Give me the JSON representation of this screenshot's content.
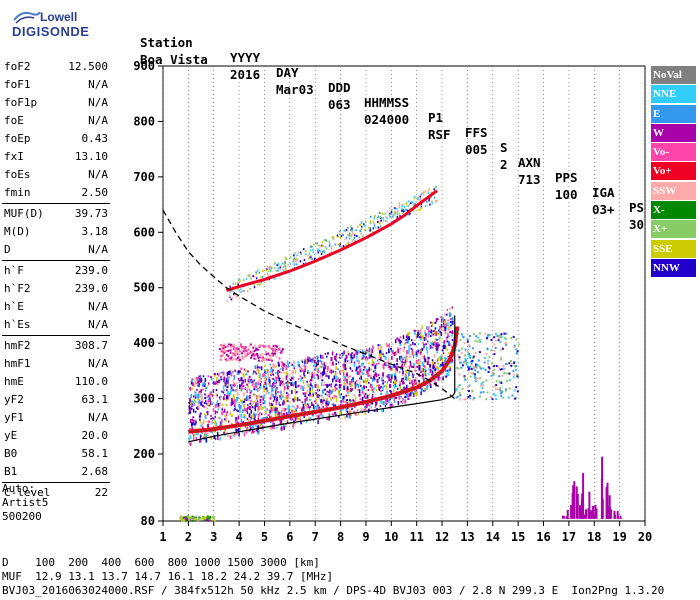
{
  "logo": {
    "line1": "Lowell",
    "line2": "DIGISONDE"
  },
  "header": {
    "labels": [
      "Station",
      "YYYY",
      "DAY",
      "DDD",
      "HHMMSS",
      "P1",
      "FFS",
      "S",
      "AXN",
      "PPS",
      "IGA",
      "PS"
    ],
    "values": [
      "Boa Vista",
      "2016",
      "Mar03",
      "063",
      "024000",
      "RSF",
      "005",
      "2",
      "713",
      "100",
      "03+",
      "30"
    ]
  },
  "params": {
    "group1": [
      {
        "label": "foF2",
        "value": "12.500"
      },
      {
        "label": "foF1",
        "value": "N/A"
      },
      {
        "label": "foF1p",
        "value": "N/A"
      },
      {
        "label": "foE",
        "value": "N/A"
      },
      {
        "label": "foEp",
        "value": "0.43"
      },
      {
        "label": "fxI",
        "value": "13.10"
      },
      {
        "label": "foEs",
        "value": "N/A"
      },
      {
        "label": "fmin",
        "value": "2.50"
      }
    ],
    "group2": [
      {
        "label": "MUF(D)",
        "value": "39.73"
      },
      {
        "label": "M(D)",
        "value": "3.18"
      },
      {
        "label": "D",
        "value": "N/A"
      }
    ],
    "group3": [
      {
        "label": "h`F",
        "value": "239.0"
      },
      {
        "label": "h`F2",
        "value": "239.0"
      },
      {
        "label": "h`E",
        "value": "N/A"
      },
      {
        "label": "h`Es",
        "value": "N/A"
      }
    ],
    "group4": [
      {
        "label": "hmF2",
        "value": "308.7"
      },
      {
        "label": "hmF1",
        "value": "N/A"
      },
      {
        "label": "hmE",
        "value": "110.0"
      },
      {
        "label": "yF2",
        "value": "63.1"
      },
      {
        "label": "yF1",
        "value": "N/A"
      },
      {
        "label": "yE",
        "value": "20.0"
      },
      {
        "label": "B0",
        "value": "58.1"
      },
      {
        "label": "B1",
        "value": "2.68"
      }
    ],
    "group5": [
      {
        "label": "C-level",
        "value": "22"
      }
    ]
  },
  "auto": {
    "line1": "Auto:",
    "line2": "Artist5",
    "line3": "500200"
  },
  "legend": [
    {
      "label": "NoVal",
      "color": "#808080"
    },
    {
      "label": "NNE",
      "color": "#33ccff"
    },
    {
      "label": "E",
      "color": "#3399ee"
    },
    {
      "label": "W",
      "color": "#aa00aa"
    },
    {
      "label": "Vo-",
      "color": "#ff44aa"
    },
    {
      "label": "Vo+",
      "color": "#ee0022"
    },
    {
      "label": "SSW",
      "color": "#ffaaaa"
    },
    {
      "label": "X-",
      "color": "#008800"
    },
    {
      "label": "X+",
      "color": "#88cc66"
    },
    {
      "label": "SSE",
      "color": "#cccc00"
    },
    {
      "label": "NNW",
      "color": "#2200cc"
    }
  ],
  "footer": {
    "line1": "D    100  200  400  600  800 1000 1500 3000 [km]",
    "line2": "MUF  12.9 13.1 13.7 14.7 16.1 18.2 24.2 39.7 [MHz]",
    "line3": "BVJ03_2016063024000.RSF / 384fx512h 50 kHz 2.5 km / DPS-4D BVJ03 003 / 2.8 N 299.3 E  Ion2Png 1.3.20"
  },
  "chart_data": {
    "type": "scatter",
    "xticks": [
      1,
      2,
      3,
      4,
      5,
      6,
      7,
      8,
      9,
      10,
      11,
      12,
      13,
      14,
      15,
      16,
      17,
      18,
      19,
      20
    ],
    "yticks": [
      80,
      200,
      300,
      400,
      500,
      600,
      700,
      800,
      900
    ],
    "xlim": [
      1,
      20
    ],
    "ylim_display": [
      80,
      900
    ],
    "x_scale": "linear",
    "y_scale": "custom (80 at base, 100 km steps from 200)",
    "grid": "dotted vertical lines at integer MHz",
    "profile_solid": [
      [
        2.0,
        222
      ],
      [
        3.0,
        232
      ],
      [
        4.0,
        240
      ],
      [
        5.0,
        248
      ],
      [
        6.0,
        256
      ],
      [
        7.0,
        263
      ],
      [
        8.0,
        270
      ],
      [
        9.0,
        277
      ],
      [
        10.0,
        284
      ],
      [
        11.0,
        291
      ],
      [
        12.0,
        298
      ],
      [
        12.4,
        304
      ],
      [
        12.5,
        310
      ]
    ],
    "profile_dashed": [
      [
        1.0,
        640
      ],
      [
        1.5,
        600
      ],
      [
        2.0,
        565
      ],
      [
        2.5,
        540
      ],
      [
        3.0,
        520
      ],
      [
        3.5,
        500
      ],
      [
        4.0,
        485
      ],
      [
        5.0,
        458
      ],
      [
        6.0,
        436
      ],
      [
        7.0,
        416
      ],
      [
        8.0,
        398
      ],
      [
        9.0,
        380
      ],
      [
        10.0,
        362
      ],
      [
        11.0,
        345
      ],
      [
        11.5,
        333
      ],
      [
        12.0,
        318
      ],
      [
        12.5,
        300
      ]
    ],
    "trace_o_F2": [
      [
        2.0,
        240
      ],
      [
        3.0,
        245
      ],
      [
        4.0,
        252
      ],
      [
        5.0,
        260
      ],
      [
        6.0,
        268
      ],
      [
        7.0,
        276
      ],
      [
        8.0,
        284
      ],
      [
        9.0,
        294
      ],
      [
        10.0,
        305
      ],
      [
        11.0,
        320
      ],
      [
        11.5,
        332
      ],
      [
        12.0,
        350
      ],
      [
        12.3,
        370
      ],
      [
        12.5,
        395
      ],
      [
        12.6,
        430
      ]
    ],
    "trace_multihop": [
      [
        3.5,
        495
      ],
      [
        4.0,
        502
      ],
      [
        5.0,
        515
      ],
      [
        6.0,
        530
      ],
      [
        7.0,
        548
      ],
      [
        8.0,
        568
      ],
      [
        9.0,
        590
      ],
      [
        10.0,
        615
      ],
      [
        10.5,
        630
      ],
      [
        11.0,
        648
      ],
      [
        11.5,
        665
      ],
      [
        11.8,
        675
      ]
    ],
    "es_bars": [
      [
        16.8,
        90
      ],
      [
        17.0,
        120
      ],
      [
        17.2,
        160
      ],
      [
        17.4,
        130
      ],
      [
        17.6,
        180
      ],
      [
        17.8,
        140
      ],
      [
        18.0,
        110
      ],
      [
        18.2,
        200
      ],
      [
        18.4,
        150
      ],
      [
        18.6,
        130
      ],
      [
        18.8,
        100
      ],
      [
        19.0,
        90
      ]
    ]
  }
}
